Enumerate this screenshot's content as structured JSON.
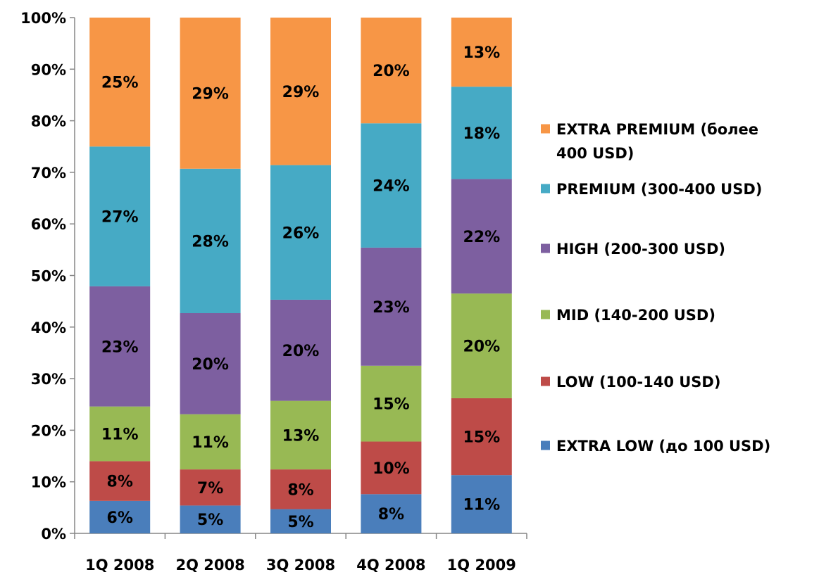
{
  "chart_data": {
    "type": "bar",
    "stacked": true,
    "percent_scale": true,
    "categories": [
      "1Q 2008",
      "2Q 2008",
      "3Q 2008",
      "4Q 2008",
      "1Q 2009"
    ],
    "ylim": [
      0,
      100
    ],
    "yticks": [
      "0%",
      "10%",
      "20%",
      "30%",
      "40%",
      "50%",
      "60%",
      "70%",
      "80%",
      "90%",
      "100%"
    ],
    "grid": false,
    "legend_position": "right",
    "series": [
      {
        "name": "EXTRA LOW (до 100 USD)",
        "color": "#4a7ebb",
        "values": [
          6.3,
          5.4,
          4.7,
          7.6,
          11.3
        ],
        "labels": [
          "6%",
          "5%",
          "5%",
          "8%",
          "11%"
        ]
      },
      {
        "name": "LOW (100-140 USD)",
        "color": "#be4b48",
        "values": [
          7.7,
          7.0,
          7.7,
          10.2,
          14.9
        ],
        "labels": [
          "8%",
          "7%",
          "8%",
          "10%",
          "15%"
        ]
      },
      {
        "name": "MID (140-200 USD)",
        "color": "#98b954",
        "values": [
          10.6,
          10.7,
          13.3,
          14.7,
          20.3
        ],
        "labels": [
          "11%",
          "11%",
          "13%",
          "15%",
          "20%"
        ]
      },
      {
        "name": "HIGH (200-300 USD)",
        "color": "#7d5fa0",
        "values": [
          23.3,
          19.6,
          19.6,
          22.9,
          22.2
        ],
        "labels": [
          "23%",
          "20%",
          "20%",
          "23%",
          "22%"
        ]
      },
      {
        "name": "PREMIUM (300-400 USD)",
        "color": "#46aac5",
        "values": [
          27.1,
          28.0,
          26.1,
          24.1,
          17.9
        ],
        "labels": [
          "27%",
          "28%",
          "26%",
          "24%",
          "18%"
        ]
      },
      {
        "name": "EXTRA PREMIUM (более 400 USD)",
        "color": "#f79646",
        "values": [
          25.0,
          29.3,
          28.6,
          20.5,
          13.4
        ],
        "labels": [
          "25%",
          "29%",
          "29%",
          "20%",
          "13%"
        ]
      }
    ],
    "legend_order": [
      5,
      4,
      3,
      2,
      1,
      0
    ],
    "legend_lines": {
      "5": [
        "EXTRA PREMIUM (более",
        "400 USD)"
      ],
      "4": [
        "PREMIUM (300-400 USD)"
      ],
      "3": [
        "HIGH (200-300 USD)"
      ],
      "2": [
        "MID (140-200 USD)"
      ],
      "1": [
        "LOW (100-140 USD)"
      ],
      "0": [
        "EXTRA LOW (до 100 USD)"
      ]
    }
  }
}
